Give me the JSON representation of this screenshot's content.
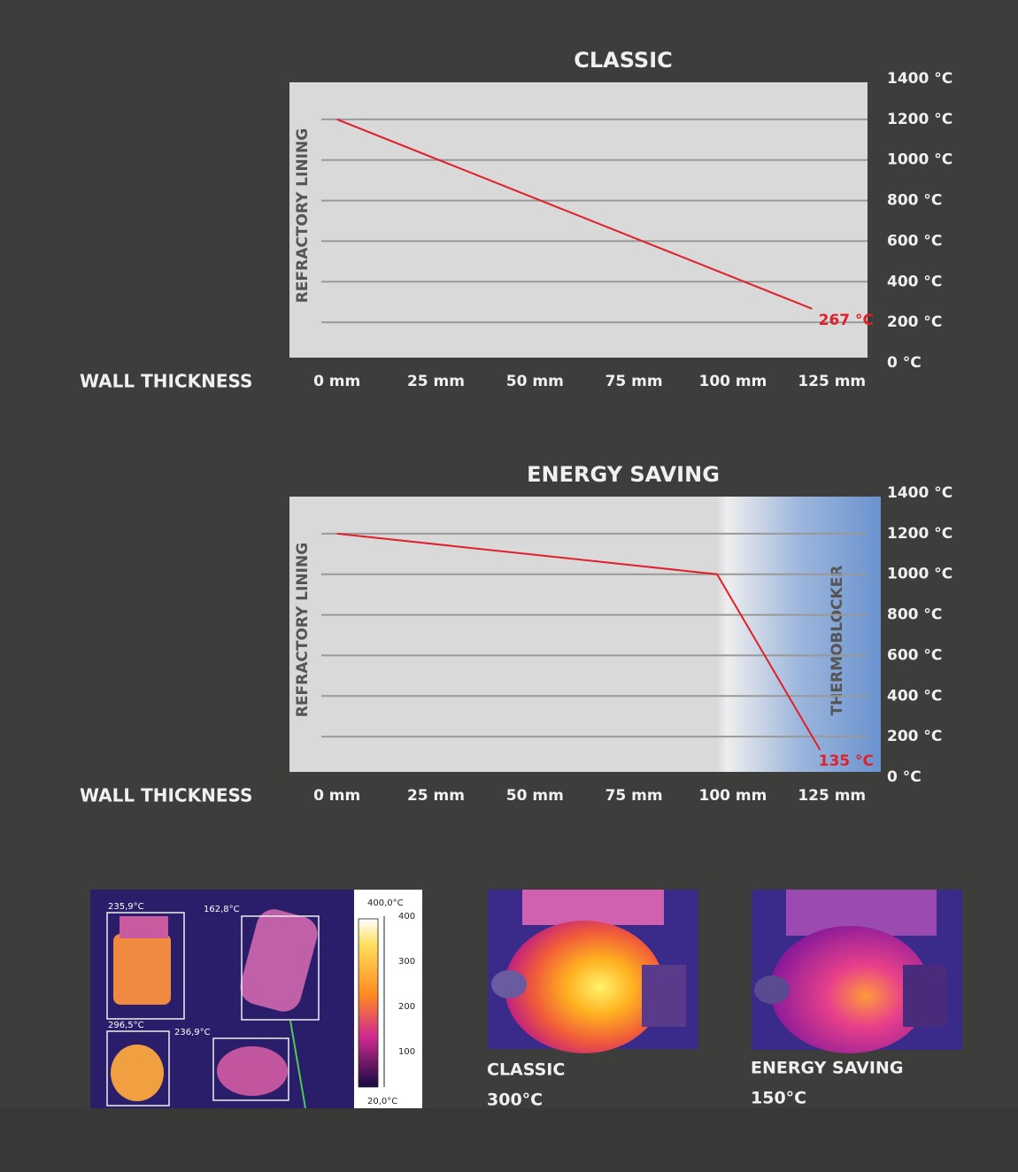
{
  "chart_data": [
    {
      "type": "line",
      "title": "CLASSIC",
      "x_label": "WALL THICKNESS",
      "y_label": "REFRACTORY LINING",
      "x": [
        0,
        120
      ],
      "values": [
        1200,
        267
      ],
      "value_labels": [
        null,
        "267 °C"
      ],
      "color": "#e0202a",
      "xlim": [
        -12,
        134
      ],
      "xticks": [
        {
          "value": 0,
          "label": "0 mm"
        },
        {
          "value": 25,
          "label": "25 mm"
        },
        {
          "value": 50,
          "label": "50 mm"
        },
        {
          "value": 75,
          "label": "75 mm"
        },
        {
          "value": 100,
          "label": "100 mm"
        },
        {
          "value": 125,
          "label": "125 mm"
        }
      ],
      "ylim": [
        0,
        1400
      ],
      "yticks": [
        {
          "value": 0,
          "label": "0 °C"
        },
        {
          "value": 200,
          "label": "200 °C"
        },
        {
          "value": 400,
          "label": "400 °C"
        },
        {
          "value": 600,
          "label": "600 °C"
        },
        {
          "value": 800,
          "label": "800 °C"
        },
        {
          "value": 1000,
          "label": "1000 °C"
        },
        {
          "value": 1200,
          "label": "1200 °C"
        },
        {
          "value": 1400,
          "label": "1400 °C"
        }
      ],
      "grid": true
    },
    {
      "type": "line",
      "title": "ENERGY SAVING",
      "x_label": "WALL THICKNESS",
      "y_label": "REFRACTORY LINING",
      "x": [
        0,
        96,
        122
      ],
      "values": [
        1200,
        1000,
        135
      ],
      "value_labels": [
        null,
        null,
        "135 °C"
      ],
      "color": "#e0202a",
      "band": {
        "label": "THERMOBLOCKER",
        "from": 96
      },
      "xlim": [
        -12,
        134
      ],
      "xticks": [
        {
          "value": 0,
          "label": "0 mm"
        },
        {
          "value": 25,
          "label": "25 mm"
        },
        {
          "value": 50,
          "label": "50 mm"
        },
        {
          "value": 75,
          "label": "75 mm"
        },
        {
          "value": 100,
          "label": "100 mm"
        },
        {
          "value": 125,
          "label": "125 mm"
        }
      ],
      "ylim": [
        0,
        1400
      ],
      "yticks": [
        {
          "value": 0,
          "label": "0 °C"
        },
        {
          "value": 200,
          "label": "200 °C"
        },
        {
          "value": 400,
          "label": "400 °C"
        },
        {
          "value": 600,
          "label": "600 °C"
        },
        {
          "value": 800,
          "label": "800 °C"
        },
        {
          "value": 1000,
          "label": "1000 °C"
        },
        {
          "value": 1200,
          "label": "1200 °C"
        },
        {
          "value": 1400,
          "label": "1400 °C"
        }
      ],
      "grid": true
    }
  ],
  "thermal_views": {
    "camera": {
      "readings": [
        "235,9°C",
        "162,8°C",
        "296,5°C",
        "236,9°C"
      ],
      "scale_max": "400,0°C",
      "scale_min": "20,0°C",
      "scale_ticks": [
        "400",
        "300",
        "200",
        "100"
      ]
    },
    "classic": {
      "caption": "CLASSIC",
      "temperature": "300°C"
    },
    "energy_saving": {
      "caption": "ENERGY SAVING",
      "temperature": "150°C"
    }
  }
}
